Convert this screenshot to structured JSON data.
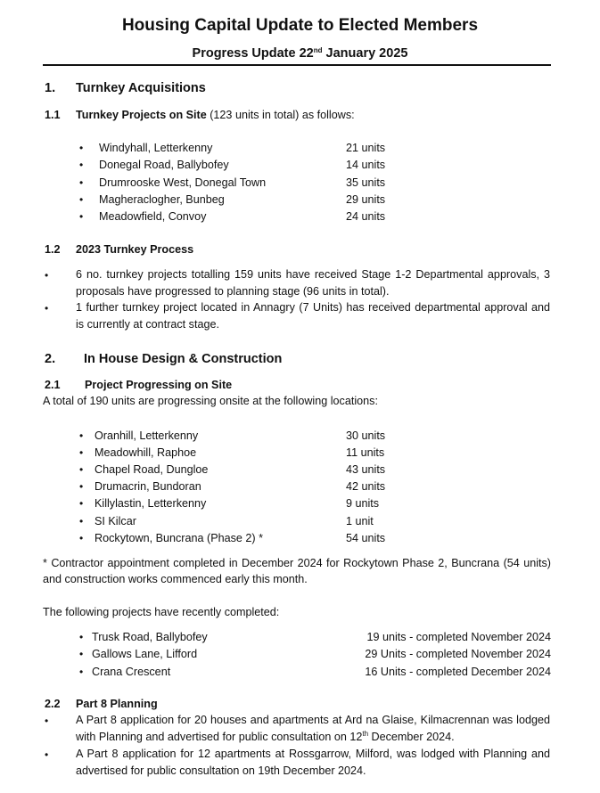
{
  "header": {
    "title": "Housing Capital Update to Elected Members",
    "subtitle_pre": "Progress Update 22",
    "subtitle_sup": "nd",
    "subtitle_post": " January 2025"
  },
  "section1": {
    "number": "1.",
    "title": "Turnkey Acquisitions",
    "sub1": {
      "number": "1.1",
      "title": "Turnkey Projects on Site",
      "suffix": " (123 units in total) as follows:",
      "items": [
        {
          "name": "Windyhall, Letterkenny",
          "units": "21 units"
        },
        {
          "name": "Donegal Road, Ballybofey",
          "units": "14 units"
        },
        {
          "name": "Drumrooske West, Donegal Town",
          "units": "35 units"
        },
        {
          "name": "Magheraclogher, Bunbeg",
          "units": "29 units"
        },
        {
          "name": "Meadowfield, Convoy",
          "units": "24 units"
        }
      ]
    },
    "sub2": {
      "number": "1.2",
      "title": "2023 Turnkey Process",
      "bullets": [
        "6 no. turnkey projects totalling 159 units have received Stage 1-2 Departmental approvals, 3 proposals have progressed to planning stage (96 units in total).",
        "1 further turnkey project located in Annagry (7 Units) has received departmental approval and is currently at contract stage."
      ]
    }
  },
  "section2": {
    "number": "2.",
    "title": "In House Design & Construction",
    "sub1": {
      "number": "2.1",
      "title": "Project Progressing on Site",
      "intro": "A total of 190 units are progressing onsite at the following locations:",
      "items": [
        {
          "name": "Oranhill, Letterkenny",
          "units": "30 units"
        },
        {
          "name": "Meadowhill, Raphoe",
          "units": "11 units"
        },
        {
          "name": "Chapel Road, Dungloe",
          "units": "43 units"
        },
        {
          "name": "Drumacrin, Bundoran",
          "units": "42 units"
        },
        {
          "name": "Killylastin, Letterkenny",
          "units": "9 units"
        },
        {
          "name": "SI Kilcar",
          "units": "1 unit"
        },
        {
          "name": "Rockytown, Buncrana (Phase 2) *",
          "units": "54 units"
        }
      ],
      "footnote": "* Contractor appointment completed in December 2024 for Rockytown Phase 2, Buncrana (54 units) and construction works commenced early this month.",
      "completed_intro": "The following projects have recently completed:",
      "completed": [
        {
          "name": "Trusk Road, Ballybofey",
          "status": "19 units - completed November 2024"
        },
        {
          "name": "Gallows Lane, Lifford",
          "status": "29 Units - completed November 2024"
        },
        {
          "name": "Crana Crescent",
          "status": "16 Units - completed December 2024"
        }
      ]
    },
    "sub2": {
      "number": "2.2",
      "title": "Part 8 Planning",
      "bullet1_pre": "A Part 8 application for 20 houses and apartments at Ard na Glaise, Kilmacrennan was lodged with Planning and advertised for public consultation on 12",
      "bullet1_sup": "th",
      "bullet1_post": " December 2024.",
      "bullet2": "A Part 8 application for 12 apartments at Rossgarrow, Milford, was lodged with Planning and advertised for public consultation on 19th December 2024."
    }
  },
  "bullet_glyph": "•"
}
